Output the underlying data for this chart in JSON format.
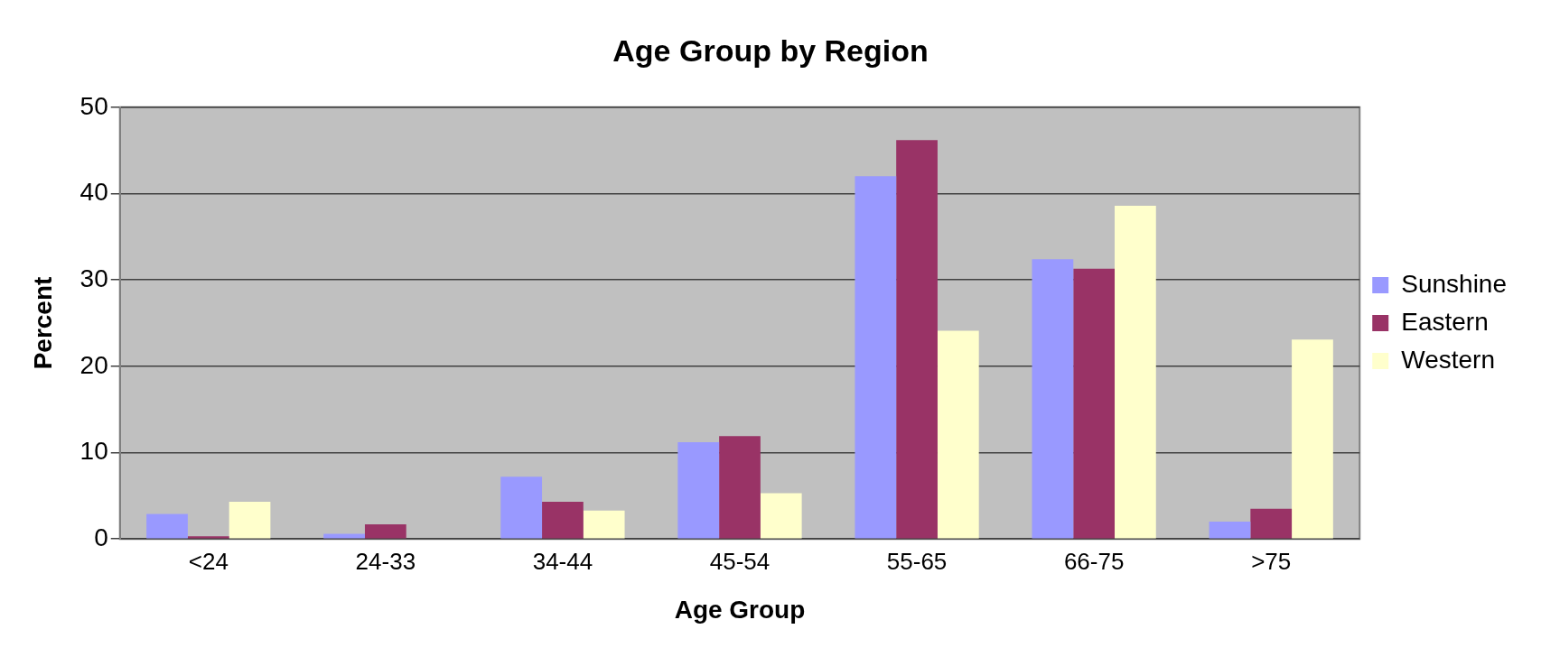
{
  "chart_data": {
    "type": "bar",
    "title": "Age Group by Region",
    "xlabel": "Age Group",
    "ylabel": "Percent",
    "categories": [
      "<24",
      "24-33",
      "34-44",
      "45-54",
      "55-65",
      "66-75",
      ">75"
    ],
    "series": [
      {
        "name": "Sunshine",
        "color": "#9999ff",
        "values": [
          2.9,
          0.6,
          7.2,
          11.2,
          42,
          32.4,
          2
        ]
      },
      {
        "name": "Eastern",
        "color": "#993366",
        "values": [
          0.3,
          1.7,
          4.3,
          11.9,
          46.2,
          31.3,
          3.5
        ]
      },
      {
        "name": "Western",
        "color": "#ffffcc",
        "values": [
          4.3,
          0,
          3.3,
          5.3,
          24.1,
          38.6,
          23.1
        ]
      }
    ],
    "ylim": [
      0,
      50
    ],
    "yticks": [
      0,
      10,
      20,
      30,
      40,
      50
    ],
    "grid": "y",
    "legend": "right"
  }
}
